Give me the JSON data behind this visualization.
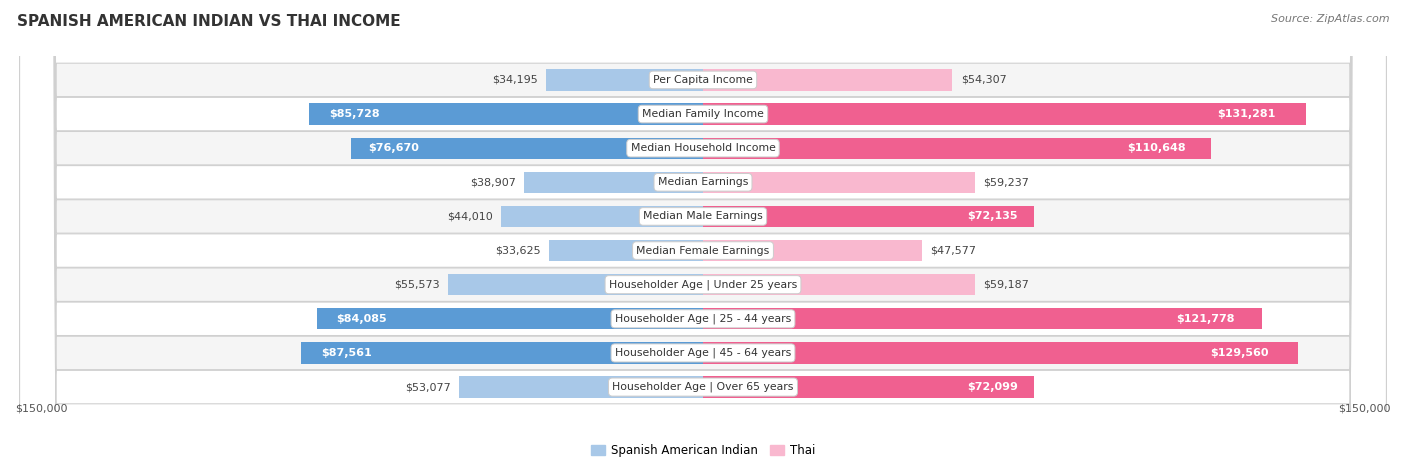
{
  "title": "SPANISH AMERICAN INDIAN VS THAI INCOME",
  "source": "Source: ZipAtlas.com",
  "categories": [
    "Per Capita Income",
    "Median Family Income",
    "Median Household Income",
    "Median Earnings",
    "Median Male Earnings",
    "Median Female Earnings",
    "Householder Age | Under 25 years",
    "Householder Age | 25 - 44 years",
    "Householder Age | 45 - 64 years",
    "Householder Age | Over 65 years"
  ],
  "spanish_values": [
    34195,
    85728,
    76670,
    38907,
    44010,
    33625,
    55573,
    84085,
    87561,
    53077
  ],
  "thai_values": [
    54307,
    131281,
    110648,
    59237,
    72135,
    47577,
    59187,
    121778,
    129560,
    72099
  ],
  "spanish_labels": [
    "$34,195",
    "$85,728",
    "$76,670",
    "$38,907",
    "$44,010",
    "$33,625",
    "$55,573",
    "$84,085",
    "$87,561",
    "$53,077"
  ],
  "thai_labels": [
    "$54,307",
    "$131,281",
    "$110,648",
    "$59,237",
    "$72,135",
    "$47,577",
    "$59,187",
    "$121,778",
    "$129,560",
    "$72,099"
  ],
  "spanish_color_light": "#a8c8e8",
  "spanish_color_dark": "#5b9bd5",
  "thai_color_light": "#f9b8cf",
  "thai_color_dark": "#f06090",
  "dark_threshold": 65000,
  "max_val": 150000,
  "xlabel_left": "$150,000",
  "xlabel_right": "$150,000",
  "legend_spanish": "Spanish American Indian",
  "legend_thai": "Thai",
  "bg_color": "#ffffff",
  "row_bg_even": "#f5f5f5",
  "row_bg_odd": "#ffffff",
  "title_fontsize": 11,
  "source_fontsize": 8,
  "bar_height": 0.62,
  "label_fontsize": 8
}
